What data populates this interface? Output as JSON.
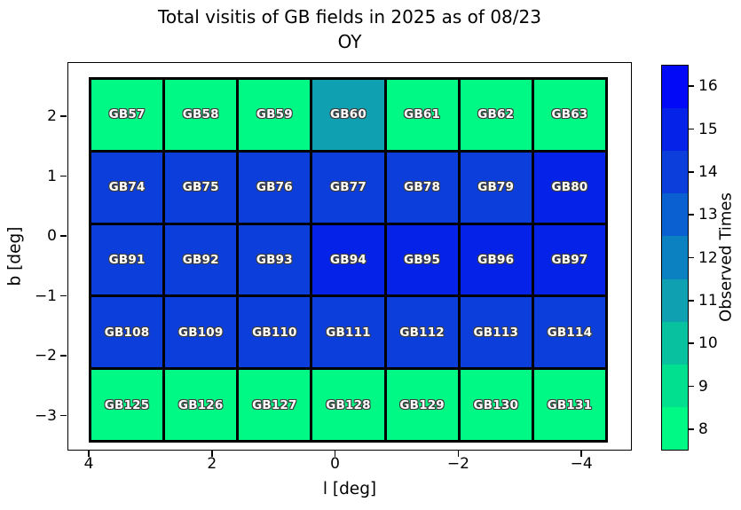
{
  "title": {
    "line1": "Total visitis of GB fields in 2025 as of 08/23",
    "line2": "OY"
  },
  "axes": {
    "xlabel": "l [deg]",
    "ylabel": "b [deg]",
    "x_ticks": [
      "4",
      "2",
      "0",
      "−2",
      "−4"
    ],
    "y_ticks": [
      "2",
      "1",
      "0",
      "−1",
      "−2",
      "−3"
    ],
    "x_axis_reversed": true
  },
  "colorbar": {
    "label": "Observed Times",
    "tick_labels_top_to_bottom": [
      "16",
      "15",
      "14",
      "13",
      "12",
      "11",
      "10",
      "9",
      "8"
    ],
    "segments_bottom_to_top": [
      {
        "value": 8,
        "color": "#00F985"
      },
      {
        "value": 9,
        "color": "#00E08F"
      },
      {
        "value": 10,
        "color": "#08C19E"
      },
      {
        "value": 11,
        "color": "#0FA0B1"
      },
      {
        "value": 12,
        "color": "#0C81C1"
      },
      {
        "value": 13,
        "color": "#0A60D0"
      },
      {
        "value": 14,
        "color": "#0C3EDC"
      },
      {
        "value": 15,
        "color": "#0522E9"
      },
      {
        "value": 16,
        "color": "#0209F7"
      }
    ]
  },
  "chart_data": {
    "type": "heatmap",
    "title": "Total visitis of GB fields in 2025 as of 08/23 OY",
    "xlabel": "l [deg]",
    "ylabel": "b [deg]",
    "xlim": [
      4.3,
      -4.8
    ],
    "ylim": [
      -3.6,
      2.9
    ],
    "colorbar_label": "Observed Times",
    "colorbar_range": [
      7.5,
      16.5
    ],
    "value_colors": {
      "8": "#00F985",
      "11": "#0FA0B1",
      "14": "#0C3EDC",
      "15": "#0522E9"
    },
    "rows": [
      {
        "cells": [
          {
            "label": "GB57",
            "value": 8
          },
          {
            "label": "GB58",
            "value": 8
          },
          {
            "label": "GB59",
            "value": 8
          },
          {
            "label": "GB60",
            "value": 11
          },
          {
            "label": "GB61",
            "value": 8
          },
          {
            "label": "GB62",
            "value": 8
          },
          {
            "label": "GB63",
            "value": 8
          }
        ]
      },
      {
        "cells": [
          {
            "label": "GB74",
            "value": 14
          },
          {
            "label": "GB75",
            "value": 14
          },
          {
            "label": "GB76",
            "value": 14
          },
          {
            "label": "GB77",
            "value": 14
          },
          {
            "label": "GB78",
            "value": 14
          },
          {
            "label": "GB79",
            "value": 14
          },
          {
            "label": "GB80",
            "value": 15
          }
        ]
      },
      {
        "cells": [
          {
            "label": "GB91",
            "value": 14
          },
          {
            "label": "GB92",
            "value": 14
          },
          {
            "label": "GB93",
            "value": 14
          },
          {
            "label": "GB94",
            "value": 15
          },
          {
            "label": "GB95",
            "value": 15
          },
          {
            "label": "GB96",
            "value": 15
          },
          {
            "label": "GB97",
            "value": 15
          }
        ]
      },
      {
        "cells": [
          {
            "label": "GB108",
            "value": 14
          },
          {
            "label": "GB109",
            "value": 14
          },
          {
            "label": "GB110",
            "value": 14
          },
          {
            "label": "GB111",
            "value": 14
          },
          {
            "label": "GB112",
            "value": 14
          },
          {
            "label": "GB113",
            "value": 14
          },
          {
            "label": "GB114",
            "value": 14
          }
        ]
      },
      {
        "cells": [
          {
            "label": "GB125",
            "value": 8
          },
          {
            "label": "GB126",
            "value": 8
          },
          {
            "label": "GB127",
            "value": 8
          },
          {
            "label": "GB128",
            "value": 8
          },
          {
            "label": "GB129",
            "value": 8
          },
          {
            "label": "GB130",
            "value": 8
          },
          {
            "label": "GB131",
            "value": 8
          }
        ]
      }
    ]
  }
}
